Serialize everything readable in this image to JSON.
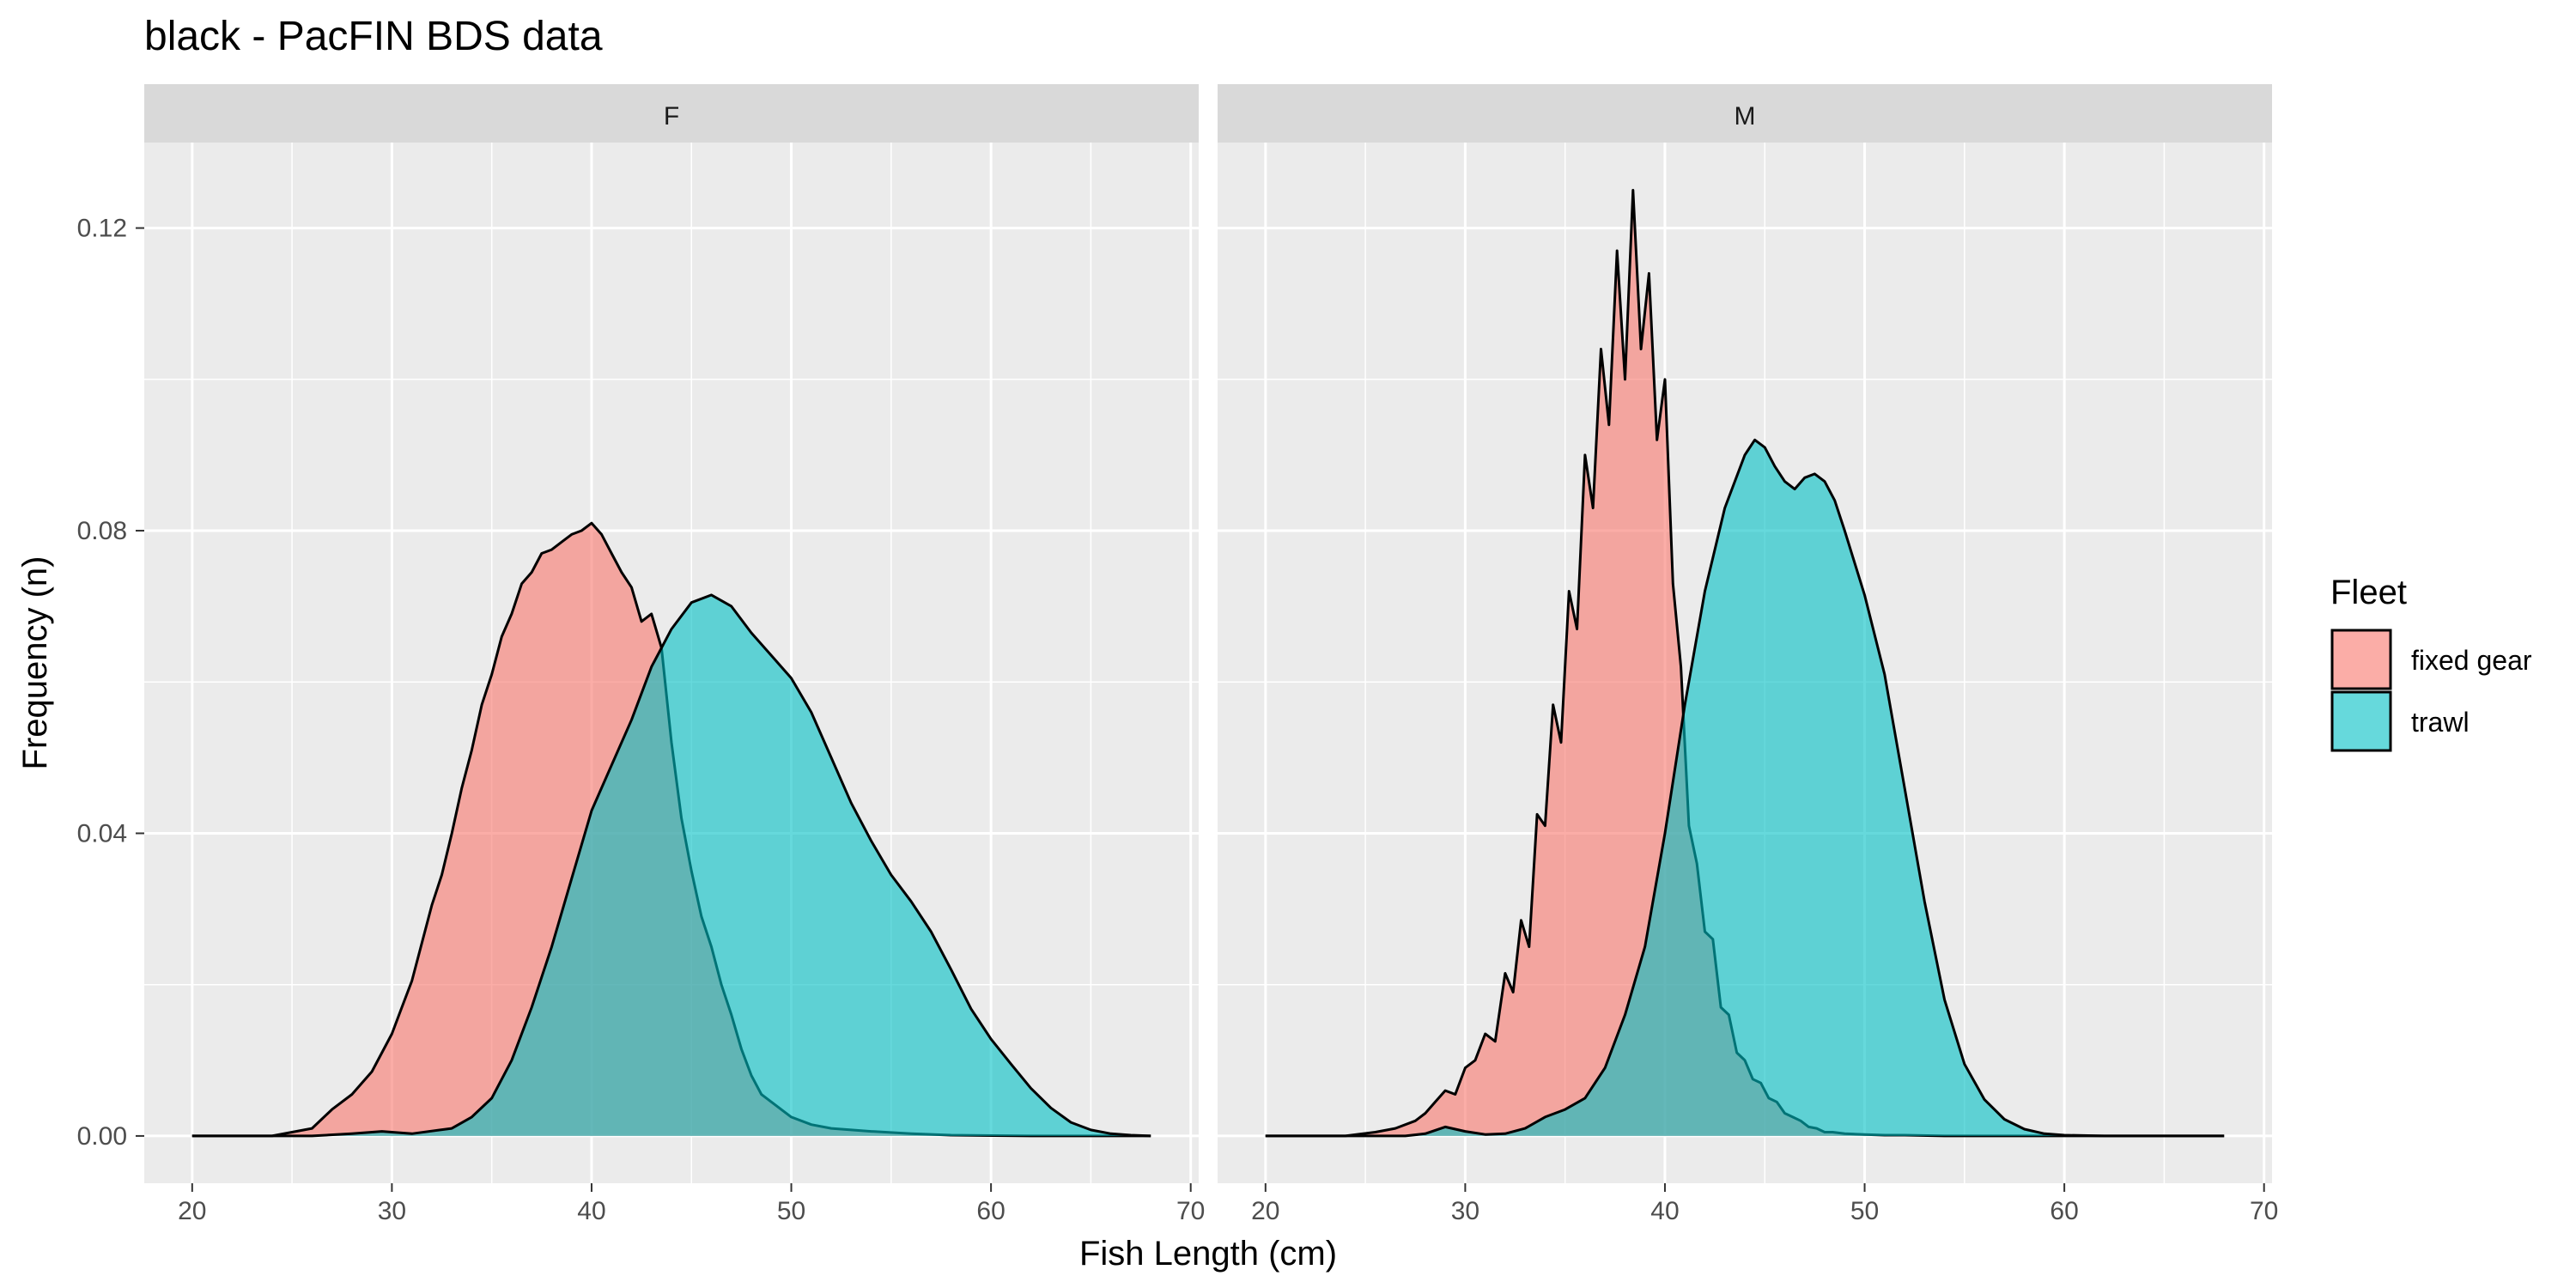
{
  "colors": {
    "panel_bg": "#EBEBEB",
    "strip_bg": "#D9D9D9",
    "grid": "#FFFFFF",
    "fixed_gear": "#F8766D",
    "trawl": "#00BFC4",
    "outline": "#000000",
    "tick_text": "#4D4D4D"
  },
  "chart_data": {
    "type": "area",
    "subtype": "density",
    "title": "black - PacFIN BDS data",
    "xlabel": "Fish Length (cm)",
    "ylabel": "Frequency (n)",
    "xlim": [
      17.6,
      70.4
    ],
    "ylim": [
      -0.00625,
      0.1313
    ],
    "x_ticks": [
      20,
      30,
      40,
      50,
      60,
      70
    ],
    "y_ticks": [
      0.0,
      0.04,
      0.08,
      0.12
    ],
    "y_tick_labels": [
      "0.00",
      "0.04",
      "0.08",
      "0.12"
    ],
    "grid": true,
    "fill_opacity": 0.6,
    "legend": {
      "title": "Fleet",
      "position": "right",
      "entries": [
        "fixed gear",
        "trawl"
      ]
    },
    "facets": [
      {
        "label": "F",
        "series": [
          {
            "name": "fixed gear",
            "color": "#F8766D",
            "x": [
              20,
              24,
              26,
              27,
              28,
              29,
              30,
              30.5,
              31,
              31.5,
              32,
              32.5,
              33,
              33.5,
              34,
              34.5,
              35,
              35.5,
              36,
              36.5,
              37,
              37.5,
              38,
              38.5,
              39,
              39.5,
              40,
              40.5,
              41,
              41.5,
              42,
              42.5,
              43,
              43.5,
              44,
              44.5,
              45,
              45.5,
              46,
              46.5,
              47,
              47.5,
              48,
              48.5,
              49,
              50,
              51,
              52,
              54,
              56,
              58,
              62,
              68
            ],
            "y": [
              0,
              0,
              0.001,
              0.0035,
              0.0055,
              0.0085,
              0.0135,
              0.017,
              0.0205,
              0.0255,
              0.0305,
              0.0345,
              0.04,
              0.046,
              0.051,
              0.057,
              0.061,
              0.066,
              0.069,
              0.073,
              0.0745,
              0.077,
              0.0775,
              0.0785,
              0.0795,
              0.08,
              0.081,
              0.0795,
              0.077,
              0.0745,
              0.0725,
              0.068,
              0.069,
              0.0645,
              0.052,
              0.042,
              0.035,
              0.029,
              0.025,
              0.02,
              0.016,
              0.0115,
              0.008,
              0.0055,
              0.0045,
              0.0025,
              0.0015,
              0.001,
              0.0006,
              0.0003,
              0.0001,
              0,
              0
            ]
          },
          {
            "name": "trawl",
            "color": "#00BFC4",
            "x": [
              20,
              26,
              28,
              29.5,
              31,
              33,
              34,
              35,
              36,
              37,
              38,
              39,
              40,
              41,
              42,
              43,
              44,
              45,
              46,
              47,
              48,
              49,
              50,
              51,
              52,
              53,
              54,
              55,
              56,
              57,
              58,
              59,
              60,
              61,
              62,
              63,
              64,
              65,
              66,
              67,
              68
            ],
            "y": [
              0,
              0,
              0.0003,
              0.0006,
              0.0003,
              0.001,
              0.0025,
              0.005,
              0.01,
              0.017,
              0.025,
              0.034,
              0.043,
              0.049,
              0.055,
              0.062,
              0.067,
              0.0705,
              0.0715,
              0.07,
              0.0665,
              0.0635,
              0.0605,
              0.056,
              0.05,
              0.044,
              0.039,
              0.0345,
              0.031,
              0.027,
              0.022,
              0.0168,
              0.0128,
              0.0095,
              0.0063,
              0.0037,
              0.0018,
              0.0008,
              0.0003,
              0.0001,
              0
            ]
          }
        ]
      },
      {
        "label": "M",
        "series": [
          {
            "name": "fixed gear",
            "color": "#F8766D",
            "x": [
              20,
              24,
              25.5,
              26.5,
              27.5,
              28,
              28.5,
              29,
              29.5,
              30,
              30.5,
              31,
              31.5,
              32,
              32.4,
              32.8,
              33.2,
              33.6,
              34,
              34.4,
              34.8,
              35.2,
              35.6,
              36,
              36.4,
              36.8,
              37.2,
              37.6,
              38,
              38.4,
              38.8,
              39.2,
              39.6,
              40,
              40.4,
              40.8,
              41.2,
              41.6,
              42,
              42.4,
              42.8,
              43.2,
              43.6,
              44,
              44.4,
              44.8,
              45.2,
              45.6,
              46,
              46.4,
              46.8,
              47.2,
              47.6,
              48,
              48.4,
              49,
              50,
              51,
              52,
              54,
              56,
              60,
              68
            ],
            "y": [
              0,
              0,
              0.0005,
              0.001,
              0.002,
              0.003,
              0.0045,
              0.006,
              0.0055,
              0.009,
              0.01,
              0.0135,
              0.0125,
              0.0215,
              0.019,
              0.0285,
              0.025,
              0.0425,
              0.041,
              0.057,
              0.052,
              0.072,
              0.067,
              0.09,
              0.083,
              0.104,
              0.094,
              0.117,
              0.1,
              0.125,
              0.104,
              0.114,
              0.092,
              0.1,
              0.073,
              0.062,
              0.041,
              0.036,
              0.027,
              0.026,
              0.017,
              0.016,
              0.011,
              0.01,
              0.0075,
              0.007,
              0.005,
              0.0045,
              0.003,
              0.0025,
              0.002,
              0.0012,
              0.001,
              0.0005,
              0.0005,
              0.0003,
              0.0002,
              0.0001,
              0.0001,
              0,
              0,
              0,
              0
            ]
          },
          {
            "name": "trawl",
            "color": "#00BFC4",
            "x": [
              20,
              27,
              28,
              29,
              30,
              31,
              32,
              33,
              34,
              35,
              36,
              37,
              38,
              39,
              40,
              41,
              42,
              43,
              44,
              44.5,
              45,
              45.5,
              46,
              46.5,
              47,
              47.5,
              48,
              48.5,
              49,
              50,
              51,
              52,
              53,
              54,
              55,
              56,
              57,
              58,
              59,
              60,
              62,
              68
            ],
            "y": [
              0,
              0,
              0.0003,
              0.0012,
              0.0006,
              0.0002,
              0.0003,
              0.001,
              0.0025,
              0.0035,
              0.005,
              0.009,
              0.016,
              0.025,
              0.04,
              0.057,
              0.072,
              0.083,
              0.09,
              0.092,
              0.091,
              0.0885,
              0.0865,
              0.0855,
              0.087,
              0.0875,
              0.0865,
              0.084,
              0.08,
              0.0715,
              0.061,
              0.046,
              0.031,
              0.018,
              0.0095,
              0.0048,
              0.0022,
              0.0009,
              0.0003,
              0.0001,
              0,
              0
            ]
          }
        ]
      }
    ]
  }
}
